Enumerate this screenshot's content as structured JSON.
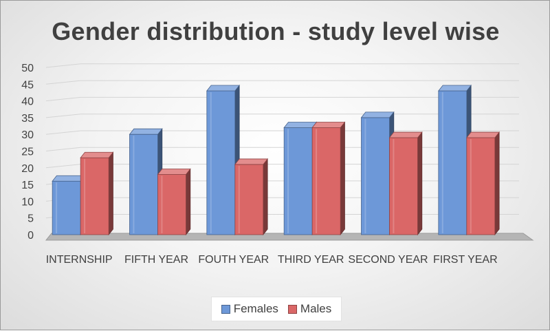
{
  "chart_data": {
    "type": "bar",
    "title": "Gender distribution - study level wise",
    "categories": [
      "INTERNSHIP",
      "FIFTH YEAR",
      "FOUTH YEAR",
      "THIRD YEAR",
      "SECOND YEAR",
      "FIRST YEAR"
    ],
    "series": [
      {
        "name": "Females",
        "values": [
          16,
          30,
          43,
          32,
          35,
          43
        ],
        "color": "#6d98d8"
      },
      {
        "name": "Males",
        "values": [
          23,
          18,
          21,
          32,
          29,
          29
        ],
        "color": "#da6767"
      }
    ],
    "ylim": [
      0,
      50
    ],
    "y_ticks": [
      0,
      5,
      10,
      15,
      20,
      25,
      30,
      35,
      40,
      45,
      50
    ],
    "grid": true,
    "legend_position": "bottom"
  }
}
